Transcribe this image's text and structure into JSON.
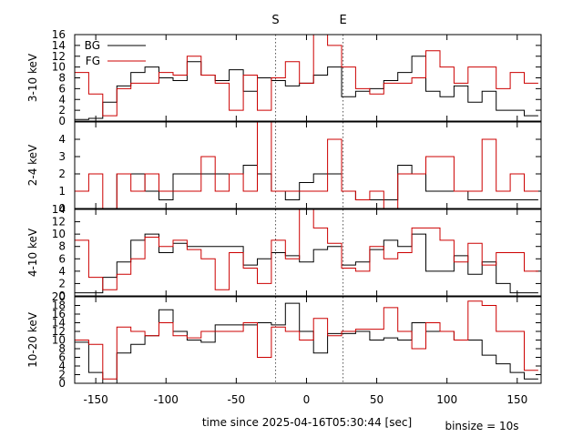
{
  "chart_data": {
    "type": "line",
    "xlabel": "time since 2025-04-16T05:30:44 [sec]",
    "binsize_label": "binsize = 10s",
    "xlim": [
      -165,
      167
    ],
    "x_ticks": [
      -150,
      -100,
      -50,
      0,
      50,
      100,
      150
    ],
    "markers": [
      {
        "label": "S",
        "x": -22
      },
      {
        "label": "E",
        "x": 26
      }
    ],
    "legend": {
      "position": "top-left",
      "entries": [
        "BG",
        "FG"
      ]
    },
    "colors": {
      "BG": "#000000",
      "FG": "#cc0000",
      "marker": "#555555"
    },
    "bin_edges": [
      -165,
      -155,
      -145,
      -135,
      -125,
      -115,
      -105,
      -95,
      -85,
      -75,
      -65,
      -55,
      -45,
      -35,
      -25,
      -15,
      -5,
      5,
      15,
      25,
      35,
      45,
      55,
      65,
      75,
      85,
      95,
      105,
      115,
      125,
      135,
      145,
      155,
      165
    ],
    "panels": [
      {
        "ylabel": "3-10 keV",
        "ylim": [
          0,
          16
        ],
        "yticks": [
          "0",
          "2",
          "4",
          "6",
          "8",
          "10",
          "12",
          "14",
          "16"
        ],
        "series": [
          {
            "name": "BG",
            "values": [
              0.3,
              0.5,
              3.5,
              6.5,
              9,
              10,
              8,
              7.5,
              11,
              8.5,
              7.5,
              9.5,
              5.5,
              8,
              7.5,
              6.5,
              7,
              8.5,
              10,
              4.5,
              5.5,
              6,
              7.5,
              9,
              12,
              5.5,
              4.5,
              6.5,
              3.5,
              5.5,
              2,
              2,
              1
            ]
          },
          {
            "name": "FG",
            "values": [
              9,
              5,
              1,
              6,
              7,
              7,
              9,
              8.5,
              12,
              8.5,
              7,
              2,
              8.5,
              2,
              8,
              11,
              7,
              16,
              14,
              10,
              6,
              5,
              7,
              7,
              8,
              13,
              10,
              7,
              10,
              10,
              6,
              9,
              7
            ]
          }
        ]
      },
      {
        "ylabel": "2-4 keV",
        "ylim": [
          0,
          5
        ],
        "yticks": [
          "0",
          "1",
          "2",
          "3",
          "4"
        ],
        "series": [
          {
            "name": "BG",
            "values": [
              0,
              0,
              0,
              2,
              2,
              1,
              0.5,
              2,
              2,
              2,
              2,
              2,
              2.5,
              2,
              1,
              0.5,
              1.5,
              2,
              2,
              1,
              0.5,
              0.5,
              0.5,
              2.5,
              2,
              1,
              1,
              1,
              0.5,
              0.5,
              0.5,
              0.5,
              0.5
            ]
          },
          {
            "name": "FG",
            "values": [
              1,
              2,
              0,
              2,
              1,
              2,
              1,
              1,
              1,
              3,
              1,
              2,
              1,
              5,
              1,
              1,
              1,
              1,
              4,
              1,
              0.5,
              1,
              0,
              2,
              2,
              3,
              3,
              1,
              1,
              4,
              1,
              2,
              1
            ]
          }
        ]
      },
      {
        "ylabel": "4-10 keV",
        "ylim": [
          0,
          14
        ],
        "yticks": [
          "0",
          "2",
          "4",
          "6",
          "8",
          "10",
          "12",
          "14"
        ],
        "series": [
          {
            "name": "BG",
            "values": [
              0.5,
              0.5,
              3,
              5.5,
              9,
              10,
              7,
              8.5,
              8,
              8,
              8,
              8,
              5,
              6,
              7,
              6.5,
              5.5,
              7.5,
              8,
              5,
              5.5,
              7.5,
              9,
              8,
              10,
              4,
              4,
              6.5,
              3.5,
              5.5,
              2,
              0.5,
              0.5
            ]
          },
          {
            "name": "FG",
            "values": [
              9,
              3,
              1,
              3.5,
              6,
              9.5,
              8,
              9,
              7.5,
              6,
              1,
              7,
              4.5,
              2,
              9,
              6,
              14,
              11,
              8.5,
              4.5,
              4,
              8,
              6,
              7,
              11,
              11,
              9,
              5.5,
              8.5,
              5,
              7,
              7,
              4
            ]
          }
        ]
      },
      {
        "ylabel": "10-20 keV",
        "ylim": [
          0,
          20
        ],
        "yticks": [
          "0",
          "2",
          "4",
          "6",
          "8",
          "10",
          "12",
          "14",
          "16",
          "18",
          "20"
        ],
        "series": [
          {
            "name": "BG",
            "values": [
              9.5,
              2.5,
              0,
              7,
              9,
              11,
              17,
              12,
              10,
              9.5,
              13.5,
              13.5,
              13.5,
              14,
              13.5,
              18.5,
              12,
              7,
              11.5,
              11.5,
              12,
              10,
              10.5,
              10,
              14,
              12,
              12,
              10,
              10,
              6.5,
              4.5,
              2.5,
              1
            ]
          },
          {
            "name": "FG",
            "values": [
              10,
              9,
              1,
              13,
              12,
              11,
              14,
              11,
              10.5,
              12,
              12,
              12,
              14,
              6,
              13,
              12,
              10,
              15,
              11,
              12,
              12.5,
              12.5,
              17.5,
              12,
              8,
              14,
              12,
              10,
              19,
              18,
              12,
              12,
              3
            ]
          }
        ]
      }
    ]
  }
}
